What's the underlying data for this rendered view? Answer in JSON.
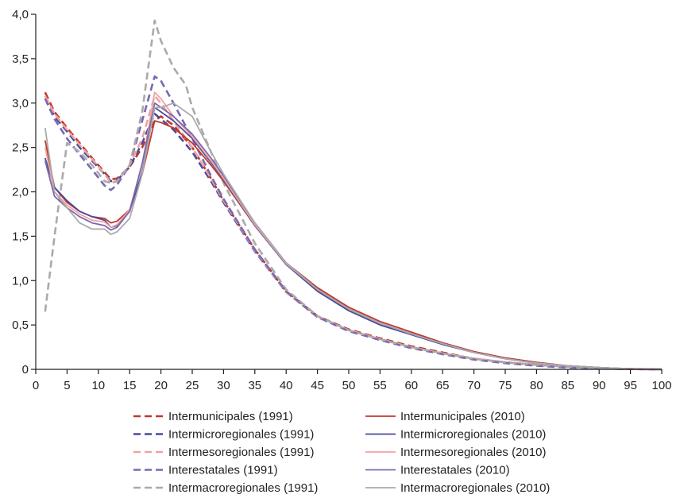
{
  "chart_data": {
    "type": "line",
    "title": "",
    "xlabel": "",
    "ylabel": "",
    "xlim": [
      0,
      100
    ],
    "ylim": [
      0,
      4.0
    ],
    "grid": false,
    "legend_position": "bottom",
    "x_ticks": [
      0,
      5,
      10,
      15,
      20,
      25,
      30,
      35,
      40,
      45,
      50,
      55,
      60,
      65,
      70,
      75,
      80,
      85,
      90,
      95,
      100
    ],
    "x_tick_labels": [
      "0",
      "5",
      "10",
      "15",
      "20",
      "25",
      "30",
      "35",
      "40",
      "45",
      "50",
      "55",
      "60",
      "65",
      "70",
      "75",
      "80",
      "85",
      "90",
      "95",
      "100"
    ],
    "y_ticks": [
      0,
      0.5,
      1.0,
      1.5,
      2.0,
      2.5,
      3.0,
      3.5,
      4.0
    ],
    "y_tick_labels": [
      "0",
      "0,5",
      "1,0",
      "1,5",
      "2,0",
      "2,5",
      "3,0",
      "3,5",
      "4,0"
    ],
    "series": [
      {
        "name": "Intermunicipales (1991)",
        "color": "#c0392b",
        "dash": true,
        "x": [
          1.5,
          3,
          5,
          7,
          9,
          11,
          12,
          13,
          15,
          17,
          19,
          20,
          22,
          25,
          28,
          30,
          35,
          40,
          45,
          50,
          55,
          60,
          65,
          70,
          75,
          80,
          85,
          90,
          95,
          100
        ],
        "y": [
          3.12,
          2.9,
          2.72,
          2.55,
          2.38,
          2.22,
          2.14,
          2.15,
          2.28,
          2.5,
          2.8,
          2.85,
          2.75,
          2.5,
          2.15,
          1.9,
          1.35,
          0.88,
          0.6,
          0.45,
          0.35,
          0.26,
          0.19,
          0.12,
          0.08,
          0.05,
          0.03,
          0.01,
          0.004,
          0
        ]
      },
      {
        "name": "Intermicroregionales (1991)",
        "color": "#4a4a9c",
        "dash": true,
        "x": [
          1.5,
          3,
          5,
          7,
          9,
          11,
          12,
          13,
          15,
          17,
          19,
          20,
          22,
          25,
          28,
          30,
          35,
          40,
          45,
          50,
          55,
          60,
          65,
          70,
          75,
          80,
          85,
          90,
          95,
          100
        ],
        "y": [
          3.05,
          2.85,
          2.68,
          2.5,
          2.35,
          2.2,
          2.12,
          2.13,
          2.28,
          2.55,
          2.88,
          2.82,
          2.7,
          2.45,
          2.12,
          1.88,
          1.33,
          0.87,
          0.59,
          0.44,
          0.34,
          0.25,
          0.18,
          0.12,
          0.08,
          0.05,
          0.03,
          0.01,
          0.004,
          0
        ]
      },
      {
        "name": "Intermesoregionales (1991)",
        "color": "#f0a3a0",
        "dash": true,
        "x": [
          1.5,
          3,
          5,
          7,
          9,
          11,
          12,
          13,
          15,
          17,
          19,
          20,
          22,
          25,
          28,
          30,
          35,
          40,
          45,
          50,
          55,
          60,
          65,
          70,
          75,
          80,
          85,
          90,
          95,
          100
        ],
        "y": [
          3.08,
          2.88,
          2.7,
          2.53,
          2.37,
          2.2,
          2.1,
          2.12,
          2.3,
          2.6,
          3.08,
          3.0,
          2.8,
          2.5,
          2.15,
          1.9,
          1.34,
          0.87,
          0.59,
          0.44,
          0.34,
          0.25,
          0.18,
          0.12,
          0.08,
          0.05,
          0.03,
          0.01,
          0.004,
          0
        ]
      },
      {
        "name": "Interestatales (1991)",
        "color": "#7b68b0",
        "dash": true,
        "x": [
          1.5,
          3,
          5,
          7,
          9,
          11,
          12,
          13,
          15,
          17,
          19,
          20,
          22,
          25,
          28,
          30,
          35,
          40,
          45,
          50,
          55,
          60,
          65,
          70,
          75,
          80,
          85,
          90,
          95,
          100
        ],
        "y": [
          3.05,
          2.82,
          2.6,
          2.42,
          2.25,
          2.07,
          2.02,
          2.08,
          2.3,
          2.8,
          3.3,
          3.25,
          3.0,
          2.6,
          2.18,
          1.92,
          1.35,
          0.88,
          0.59,
          0.43,
          0.33,
          0.24,
          0.17,
          0.11,
          0.07,
          0.04,
          0.02,
          0.01,
          0.003,
          0
        ]
      },
      {
        "name": "Intermacroregionales (1991)",
        "color": "#aaaaaa",
        "dash": true,
        "x": [
          1.5,
          3,
          5,
          7,
          9,
          11,
          12,
          13,
          15,
          17,
          19,
          20,
          22,
          24,
          25,
          28,
          30,
          35,
          40,
          45,
          50,
          55,
          60,
          65,
          70,
          75,
          80,
          85,
          90,
          95,
          100
        ],
        "y": [
          0.65,
          1.5,
          2.55,
          2.45,
          2.3,
          2.12,
          2.1,
          2.12,
          2.3,
          2.9,
          3.93,
          3.7,
          3.4,
          3.2,
          2.95,
          2.45,
          2.1,
          1.42,
          0.9,
          0.6,
          0.44,
          0.34,
          0.25,
          0.18,
          0.12,
          0.08,
          0.05,
          0.03,
          0.01,
          0.004,
          0
        ]
      },
      {
        "name": "Intermunicipales (2010)",
        "color": "#c0392b",
        "dash": false,
        "x": [
          1.5,
          3,
          5,
          7,
          9,
          11,
          12,
          13,
          15,
          17,
          19,
          20,
          22,
          25,
          28,
          30,
          35,
          40,
          45,
          50,
          55,
          60,
          65,
          70,
          75,
          80,
          85,
          90,
          95,
          100
        ],
        "y": [
          2.58,
          2.05,
          1.88,
          1.78,
          1.72,
          1.7,
          1.65,
          1.67,
          1.8,
          2.2,
          2.8,
          2.78,
          2.72,
          2.55,
          2.3,
          2.12,
          1.62,
          1.2,
          0.92,
          0.7,
          0.54,
          0.42,
          0.3,
          0.2,
          0.13,
          0.08,
          0.04,
          0.02,
          0.006,
          0
        ]
      },
      {
        "name": "Intermicroregionales (2010)",
        "color": "#4a4a9c",
        "dash": false,
        "x": [
          1.5,
          3,
          5,
          7,
          9,
          11,
          12,
          13,
          15,
          17,
          19,
          20,
          22,
          25,
          28,
          30,
          35,
          40,
          45,
          50,
          55,
          60,
          65,
          70,
          75,
          80,
          85,
          90,
          95,
          100
        ],
        "y": [
          2.38,
          2.05,
          1.9,
          1.78,
          1.72,
          1.68,
          1.6,
          1.62,
          1.78,
          2.22,
          2.95,
          2.9,
          2.8,
          2.6,
          2.33,
          2.14,
          1.62,
          1.18,
          0.88,
          0.66,
          0.5,
          0.39,
          0.28,
          0.19,
          0.12,
          0.07,
          0.04,
          0.02,
          0.005,
          0
        ]
      },
      {
        "name": "Intermesoregionales (2010)",
        "color": "#f0a3a0",
        "dash": false,
        "x": [
          1.5,
          3,
          5,
          7,
          9,
          11,
          12,
          13,
          15,
          17,
          19,
          20,
          22,
          25,
          28,
          30,
          35,
          40,
          45,
          50,
          55,
          60,
          65,
          70,
          75,
          80,
          85,
          90,
          95,
          100
        ],
        "y": [
          2.5,
          2.0,
          1.85,
          1.75,
          1.68,
          1.66,
          1.6,
          1.63,
          1.8,
          2.3,
          3.12,
          3.05,
          2.85,
          2.62,
          2.35,
          2.15,
          1.63,
          1.19,
          0.9,
          0.68,
          0.52,
          0.4,
          0.29,
          0.19,
          0.12,
          0.07,
          0.04,
          0.02,
          0.005,
          0
        ]
      },
      {
        "name": "Interestatales (2010)",
        "color": "#7b68b0",
        "dash": false,
        "x": [
          1.5,
          3,
          5,
          7,
          9,
          11,
          12,
          13,
          15,
          17,
          19,
          20,
          22,
          25,
          28,
          30,
          35,
          40,
          45,
          50,
          55,
          60,
          65,
          70,
          75,
          80,
          85,
          90,
          95,
          100
        ],
        "y": [
          2.35,
          1.95,
          1.82,
          1.72,
          1.65,
          1.62,
          1.57,
          1.6,
          1.78,
          2.32,
          3.0,
          2.95,
          2.85,
          2.65,
          2.38,
          2.18,
          1.65,
          1.2,
          0.9,
          0.68,
          0.52,
          0.4,
          0.29,
          0.19,
          0.12,
          0.07,
          0.04,
          0.02,
          0.005,
          0
        ]
      },
      {
        "name": "Intermacroregionales (2010)",
        "color": "#aaaaaa",
        "dash": false,
        "x": [
          1.5,
          3,
          5,
          7,
          9,
          11,
          12,
          13,
          15,
          17,
          19,
          20,
          22,
          25,
          28,
          30,
          35,
          40,
          45,
          50,
          55,
          60,
          65,
          70,
          75,
          80,
          85,
          90,
          95,
          100
        ],
        "y": [
          2.72,
          2.0,
          1.82,
          1.65,
          1.58,
          1.58,
          1.52,
          1.55,
          1.7,
          2.2,
          2.95,
          2.95,
          3.0,
          2.85,
          2.45,
          2.2,
          1.65,
          1.2,
          0.9,
          0.68,
          0.52,
          0.4,
          0.29,
          0.19,
          0.12,
          0.07,
          0.04,
          0.02,
          0.005,
          0
        ]
      }
    ]
  }
}
